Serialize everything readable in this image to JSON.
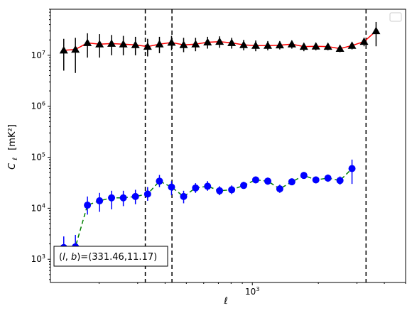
{
  "chart_data": {
    "type": "line",
    "title": "",
    "xlabel": "ℓ",
    "ylabel_main": "C",
    "ylabel_sub": "ℓ",
    "ylabel_unit": "[mK²]",
    "xscale": "log",
    "yscale": "log",
    "xlim": [
      120,
      5000
    ],
    "ylim": [
      350,
      80000000
    ],
    "x_major_ticks": [
      {
        "value": 1000,
        "base": "10",
        "exp": "3"
      }
    ],
    "y_major_ticks": [
      {
        "value": 1000,
        "base": "10",
        "exp": "3"
      },
      {
        "value": 10000,
        "base": "10",
        "exp": "4"
      },
      {
        "value": 100000,
        "base": "10",
        "exp": "5"
      },
      {
        "value": 1000000,
        "base": "10",
        "exp": "6"
      },
      {
        "value": 10000000,
        "base": "10",
        "exp": "7"
      }
    ],
    "legend": {
      "placement": "top-right",
      "entries": []
    },
    "annotation": "(l, b)=(331.46,11.17)",
    "vlines": [
      {
        "x": 325
      },
      {
        "x": 430
      },
      {
        "x": 3300
      }
    ],
    "series": [
      {
        "marker": "triangle",
        "marker_color": "#000000",
        "line_color": "#ff0000",
        "line_style": "solid",
        "points": [
          {
            "x": 138,
            "y": 12500000,
            "lo": 5000000,
            "hi": 21000000
          },
          {
            "x": 156,
            "y": 13000000,
            "lo": 4500000,
            "hi": 22000000
          },
          {
            "x": 177,
            "y": 17500000,
            "lo": 9000000,
            "hi": 27000000
          },
          {
            "x": 201,
            "y": 16500000,
            "lo": 9000000,
            "hi": 26000000
          },
          {
            "x": 228,
            "y": 17000000,
            "lo": 10000000,
            "hi": 25000000
          },
          {
            "x": 258,
            "y": 16500000,
            "lo": 10000000,
            "hi": 24000000
          },
          {
            "x": 293,
            "y": 16000000,
            "lo": 10000000,
            "hi": 23000000
          },
          {
            "x": 333,
            "y": 14800000,
            "lo": 9500000,
            "hi": 21000000
          },
          {
            "x": 377,
            "y": 16500000,
            "lo": 11000000,
            "hi": 23000000
          },
          {
            "x": 428,
            "y": 17800000,
            "lo": 12500000,
            "hi": 24000000
          },
          {
            "x": 486,
            "y": 16000000,
            "lo": 11500000,
            "hi": 22000000
          },
          {
            "x": 551,
            "y": 16500000,
            "lo": 12000000,
            "hi": 22000000
          },
          {
            "x": 625,
            "y": 18000000,
            "lo": 13500000,
            "hi": 23000000
          },
          {
            "x": 709,
            "y": 18500000,
            "lo": 14000000,
            "hi": 23500000
          },
          {
            "x": 805,
            "y": 17500000,
            "lo": 13500000,
            "hi": 22000000
          },
          {
            "x": 913,
            "y": 16000000,
            "lo": 12500000,
            "hi": 20000000
          },
          {
            "x": 1036,
            "y": 15500000,
            "lo": 12000000,
            "hi": 19500000
          },
          {
            "x": 1176,
            "y": 15500000,
            "lo": 12500000,
            "hi": 19000000
          },
          {
            "x": 1334,
            "y": 15800000,
            "lo": 13000000,
            "hi": 19000000
          },
          {
            "x": 1514,
            "y": 16500000,
            "lo": 13500000,
            "hi": 19500000
          },
          {
            "x": 1718,
            "y": 14800000,
            "lo": 12000000,
            "hi": 17500000
          },
          {
            "x": 1949,
            "y": 15000000,
            "lo": 12500000,
            "hi": 17500000
          },
          {
            "x": 2212,
            "y": 14800000,
            "lo": 12500000,
            "hi": 17000000
          },
          {
            "x": 2510,
            "y": 13500000,
            "lo": 11500000,
            "hi": 15500000
          },
          {
            "x": 2848,
            "y": 15500000,
            "lo": 13000000,
            "hi": 18000000
          },
          {
            "x": 3232,
            "y": 18500000,
            "lo": 15000000,
            "hi": 22000000
          },
          {
            "x": 3667,
            "y": 30000000,
            "lo": 15000000,
            "hi": 45000000
          }
        ]
      },
      {
        "marker": "circle",
        "marker_color": "#0000ff",
        "line_color": "#008000",
        "line_style": "dashed",
        "points": [
          {
            "x": 138,
            "y": 1700,
            "lo": 1100,
            "hi": 2800
          },
          {
            "x": 156,
            "y": 1750,
            "lo": 1100,
            "hi": 3000
          },
          {
            "x": 177,
            "y": 11500,
            "lo": 7500,
            "hi": 17000
          },
          {
            "x": 201,
            "y": 14000,
            "lo": 8500,
            "hi": 20000
          },
          {
            "x": 228,
            "y": 16000,
            "lo": 9500,
            "hi": 22000
          },
          {
            "x": 258,
            "y": 16000,
            "lo": 11000,
            "hi": 22000
          },
          {
            "x": 293,
            "y": 17000,
            "lo": 12000,
            "hi": 23000
          },
          {
            "x": 333,
            "y": 19000,
            "lo": 14000,
            "hi": 26000
          },
          {
            "x": 377,
            "y": 34000,
            "lo": 26000,
            "hi": 45000
          },
          {
            "x": 428,
            "y": 26000,
            "lo": 18000,
            "hi": 34000
          },
          {
            "x": 486,
            "y": 17000,
            "lo": 12500,
            "hi": 22000
          },
          {
            "x": 551,
            "y": 25000,
            "lo": 20000,
            "hi": 31000
          },
          {
            "x": 625,
            "y": 27000,
            "lo": 22000,
            "hi": 34000
          },
          {
            "x": 709,
            "y": 22000,
            "lo": 18000,
            "hi": 27000
          },
          {
            "x": 805,
            "y": 23000,
            "lo": 19000,
            "hi": 28000
          },
          {
            "x": 913,
            "y": 28000,
            "lo": 24000,
            "hi": 33000
          },
          {
            "x": 1036,
            "y": 36000,
            "lo": 31000,
            "hi": 42000
          },
          {
            "x": 1176,
            "y": 34000,
            "lo": 29000,
            "hi": 40000
          },
          {
            "x": 1334,
            "y": 24000,
            "lo": 20000,
            "hi": 29000
          },
          {
            "x": 1514,
            "y": 33000,
            "lo": 29000,
            "hi": 38000
          },
          {
            "x": 1718,
            "y": 44000,
            "lo": 38000,
            "hi": 51000
          },
          {
            "x": 1949,
            "y": 36000,
            "lo": 31000,
            "hi": 42000
          },
          {
            "x": 2212,
            "y": 39000,
            "lo": 33000,
            "hi": 46000
          },
          {
            "x": 2510,
            "y": 35000,
            "lo": 29000,
            "hi": 42000
          },
          {
            "x": 2848,
            "y": 60000,
            "lo": 30000,
            "hi": 90000
          }
        ]
      }
    ]
  }
}
